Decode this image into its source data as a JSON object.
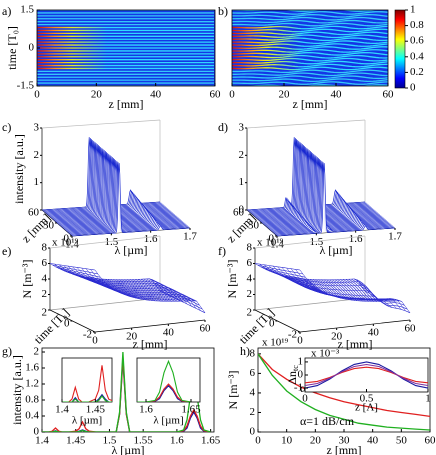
{
  "chart_data": [
    {
      "type": "heatmap",
      "label": "a)",
      "ylabel": "time [T₀]",
      "xlabel": "z [mm]",
      "xlim": [
        0,
        60
      ],
      "xticks": [
        0,
        20,
        40,
        60
      ],
      "ylim": [
        -1.5,
        1.5
      ],
      "yticks": [
        -1.5,
        0,
        1.5
      ]
    },
    {
      "type": "heatmap",
      "label": "b)",
      "xlabel": "z [mm]",
      "xlim": [
        0,
        60
      ],
      "xticks": [
        0,
        20,
        40,
        60
      ],
      "ylim": [
        -1.5,
        1.5
      ],
      "wavy": true,
      "colorbar": {
        "lim": [
          0,
          1
        ],
        "ticks": [
          0,
          0.2,
          0.4,
          0.6,
          0.8,
          1
        ]
      }
    },
    {
      "type": "waterfall",
      "label": "c)",
      "zlabel": "intensity [a.u.]",
      "zlim": [
        0,
        3
      ],
      "zticks": [
        1,
        2,
        3
      ],
      "ylabel": "z [mm]",
      "ylim": [
        0,
        60
      ],
      "yticks": [
        0,
        30,
        60
      ],
      "xlabel": "λ [µm]",
      "xlim": [
        1.4,
        1.7
      ],
      "xticks": [
        1.4,
        1.5,
        1.6,
        1.7
      ]
    },
    {
      "type": "waterfall",
      "label": "d)",
      "zlim": [
        0,
        3
      ],
      "zticks": [
        0,
        1,
        2,
        3
      ],
      "ylabel": "z [mm]",
      "ylim": [
        0,
        60
      ],
      "yticks": [
        0,
        30,
        60
      ],
      "xlabel": "λ [µm]",
      "xlim": [
        1.4,
        1.7
      ],
      "xticks": [
        1.4,
        1.5,
        1.6,
        1.7
      ],
      "sidebands": true
    },
    {
      "type": "surface",
      "label": "e)",
      "scale": "x 10¹⁹",
      "zlabel": "N [m⁻³]",
      "zlim": [
        0,
        8
      ],
      "zticks": [
        2,
        4,
        6,
        8
      ],
      "ylabel": "time [T₀]",
      "ylim": [
        -2,
        2
      ],
      "yticks": [
        -2,
        0,
        2
      ],
      "xlabel": "z [mm]",
      "xlim": [
        0,
        60
      ],
      "xticks": [
        0,
        20,
        40,
        60
      ]
    },
    {
      "type": "surface",
      "label": "f)",
      "scale": "x 10¹⁹",
      "zlabel": "N [m⁻³]",
      "zlim": [
        0,
        8
      ],
      "zticks": [
        2,
        4,
        6,
        8
      ],
      "ylabel": "time [T₀]",
      "ylim": [
        -2,
        2
      ],
      "yticks": [
        -2,
        0,
        2
      ],
      "xlabel": "z [mm]",
      "xlim": [
        0,
        60
      ],
      "xticks": [
        0,
        20,
        40,
        60
      ],
      "modulated": true
    },
    {
      "type": "line",
      "label": "g)",
      "ylabel": "intensity [a.u.]",
      "xlabel": "λ [µm]",
      "xlim": [
        1.4,
        1.655
      ],
      "xticks": [
        1.4,
        1.45,
        1.5,
        1.55,
        1.6,
        1.65
      ],
      "ylim": [
        0,
        2.1
      ],
      "yticks": [
        0,
        0.4,
        0.8,
        1.2,
        1.6,
        2
      ],
      "x": [
        1.4,
        1.41,
        1.415,
        1.42,
        1.425,
        1.43,
        1.44,
        1.45,
        1.455,
        1.46,
        1.465,
        1.47,
        1.48,
        1.5,
        1.51,
        1.515,
        1.52,
        1.525,
        1.53,
        1.55,
        1.6,
        1.61,
        1.615,
        1.62,
        1.625,
        1.63,
        1.635,
        1.64,
        1.65
      ],
      "series": [
        {
          "color": "#1a1aa0",
          "values": [
            0,
            0,
            0,
            0.03,
            0,
            0,
            0,
            0,
            0.02,
            0.05,
            0.02,
            0,
            0,
            0,
            0,
            0.45,
            1.8,
            0.45,
            0,
            0,
            0,
            0.02,
            0.1,
            0.35,
            0.5,
            0.35,
            0.1,
            0.02,
            0
          ]
        },
        {
          "color": "#e02020",
          "values": [
            0,
            0,
            0.02,
            0.1,
            0.02,
            0,
            0,
            0.02,
            0.08,
            0.25,
            0.08,
            0.02,
            0,
            0,
            0,
            0.45,
            1.85,
            0.45,
            0,
            0,
            0,
            0.03,
            0.15,
            0.4,
            0.55,
            0.4,
            0.15,
            0.03,
            0
          ]
        },
        {
          "color": "#20b020",
          "values": [
            0,
            0,
            0,
            0.02,
            0,
            0,
            0,
            0,
            0.01,
            0.04,
            0.01,
            0,
            0,
            0,
            0,
            0.5,
            2.0,
            0.5,
            0,
            0,
            0,
            0.05,
            0.3,
            0.9,
            1.25,
            0.9,
            0.3,
            0.05,
            0
          ]
        }
      ],
      "insets": [
        {
          "xlim": [
            1.4,
            1.475
          ],
          "xticks": [
            1.4,
            1.45
          ],
          "ylim": [
            0,
            0.3
          ],
          "xlabel": "λ [µm]"
        },
        {
          "xlim": [
            1.59,
            1.66
          ],
          "xticks": [
            1.6,
            1.65
          ],
          "ylim": [
            0,
            1.35
          ],
          "xlabel": "λ [µm]"
        }
      ]
    },
    {
      "type": "line",
      "label": "h)",
      "scale": "x 10¹⁹",
      "ylabel": "N [m⁻³]",
      "xlabel": "z [mm]",
      "xlim": [
        0,
        60
      ],
      "xticks": [
        0,
        10,
        20,
        30,
        40,
        50,
        60
      ],
      "ylim": [
        0,
        8.6
      ],
      "yticks": [
        0,
        2,
        4,
        6,
        8
      ],
      "x": [
        0,
        5,
        10,
        15,
        20,
        25,
        30,
        35,
        40,
        45,
        50,
        55,
        60
      ],
      "series": [
        {
          "color": "#e02020",
          "values": [
            8.0,
            6.4,
            5.4,
            4.6,
            4.0,
            3.5,
            3.1,
            2.8,
            2.5,
            2.2,
            2.0,
            1.8,
            1.6
          ]
        },
        {
          "color": "#20b020",
          "values": [
            8.0,
            5.8,
            4.2,
            3.1,
            2.3,
            1.7,
            1.3,
            0.9,
            0.7,
            0.5,
            0.4,
            0.3,
            0.2
          ]
        }
      ],
      "annotations": [
        {
          "text": "α=0",
          "color": "#e02020"
        },
        {
          "text": "α=1 dB/cm",
          "color": "#20b020"
        }
      ],
      "inset": {
        "ylabel": "Δn",
        "ylabel_sub": "tc",
        "scale": "x 10⁻³",
        "xlabel": "z [Λ]",
        "xlim": [
          0,
          1
        ],
        "xticks": [
          0,
          0.5,
          1
        ],
        "ylim": [
          -1.3,
          1.3
        ],
        "yticks": [
          -1,
          0,
          1
        ],
        "x": [
          0,
          0.1,
          0.2,
          0.3,
          0.4,
          0.5,
          0.6,
          0.7,
          0.8,
          0.9,
          1
        ],
        "series": [
          {
            "color": "#1a1aa0",
            "values": [
              -1,
              -0.81,
              -0.31,
              0.31,
              0.81,
              1,
              0.81,
              0.31,
              -0.31,
              -0.81,
              -1
            ]
          },
          {
            "color": "#e02020",
            "values": [
              -0.6,
              -0.49,
              -0.19,
              0.19,
              0.49,
              0.6,
              0.49,
              0.19,
              -0.19,
              -0.49,
              -0.6
            ]
          },
          {
            "color": "#8030a0",
            "values": [
              -0.8,
              -0.65,
              -0.25,
              0.25,
              0.65,
              0.8,
              0.65,
              0.25,
              -0.25,
              -0.65,
              -0.8
            ]
          }
        ]
      }
    }
  ]
}
